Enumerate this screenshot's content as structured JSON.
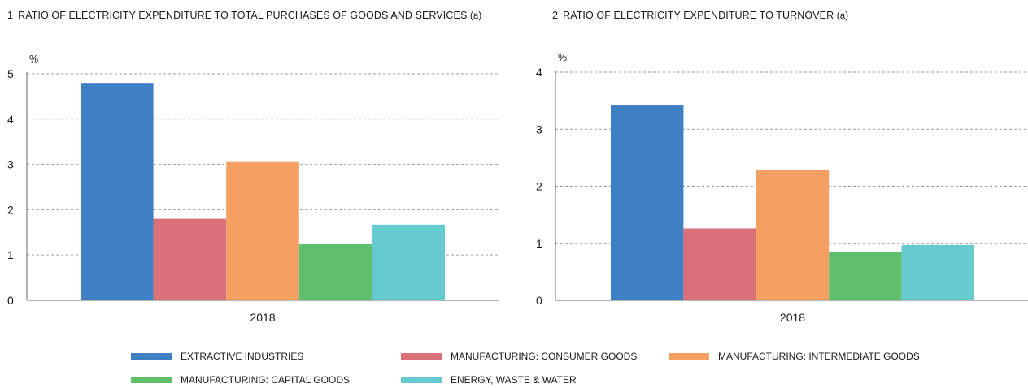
{
  "colors": {
    "extractive": "#3f7fc4",
    "consumer": "#d9707a",
    "intermediate": "#f5a062",
    "capital": "#5fbf6a",
    "energy": "#66cbcf",
    "grid": "#9a9a9a",
    "axis": "#6a6a6a"
  },
  "panels": [
    {
      "num": "1",
      "title": "RATIO OF ELECTRICITY EXPENDITURE TO TOTAL PURCHASES OF GOODS AND SERVICES",
      "note": "(a)"
    },
    {
      "num": "2",
      "title": "RATIO OF ELECTRICITY EXPENDITURE TO TURNOVER",
      "note": "(a)"
    }
  ],
  "legend": [
    {
      "label": "EXTRACTIVE INDUSTRIES",
      "color": "#3f7fc4"
    },
    {
      "label": "MANUFACTURING: CONSUMER GOODS",
      "color": "#d9707a"
    },
    {
      "label": "MANUFACTURING: INTERMEDIATE GOODS",
      "color": "#f5a062"
    },
    {
      "label": "MANUFACTURING: CAPITAL GOODS",
      "color": "#5fbf6a"
    },
    {
      "label": "ENERGY, WASTE & WATER",
      "color": "#66cbcf"
    }
  ],
  "chart_data": [
    {
      "type": "bar",
      "title": "RATIO OF ELECTRICITY EXPENDITURE TO TOTAL PURCHASES OF GOODS AND SERVICES (a)",
      "ylabel": "%",
      "categories": [
        "2018"
      ],
      "ylim": [
        0,
        5
      ],
      "yticks": [
        0,
        1,
        2,
        3,
        4,
        5
      ],
      "grid": true,
      "series": [
        {
          "name": "EXTRACTIVE INDUSTRIES",
          "values": [
            4.8
          ]
        },
        {
          "name": "MANUFACTURING: CONSUMER GOODS",
          "values": [
            1.8
          ]
        },
        {
          "name": "MANUFACTURING: INTERMEDIATE GOODS",
          "values": [
            3.07
          ]
        },
        {
          "name": "MANUFACTURING: CAPITAL GOODS",
          "values": [
            1.25
          ]
        },
        {
          "name": "ENERGY, WASTE & WATER",
          "values": [
            1.67
          ]
        }
      ]
    },
    {
      "type": "bar",
      "title": "RATIO OF ELECTRICITY EXPENDITURE TO TURNOVER (a)",
      "ylabel": "%",
      "categories": [
        "2018"
      ],
      "ylim": [
        0,
        4
      ],
      "yticks": [
        0,
        1,
        2,
        3,
        4
      ],
      "grid": true,
      "series": [
        {
          "name": "EXTRACTIVE INDUSTRIES",
          "values": [
            3.43
          ]
        },
        {
          "name": "MANUFACTURING: CONSUMER GOODS",
          "values": [
            1.26
          ]
        },
        {
          "name": "MANUFACTURING: INTERMEDIATE GOODS",
          "values": [
            2.29
          ]
        },
        {
          "name": "MANUFACTURING: CAPITAL GOODS",
          "values": [
            0.84
          ]
        },
        {
          "name": "ENERGY, WASTE & WATER",
          "values": [
            0.97
          ]
        }
      ]
    }
  ]
}
